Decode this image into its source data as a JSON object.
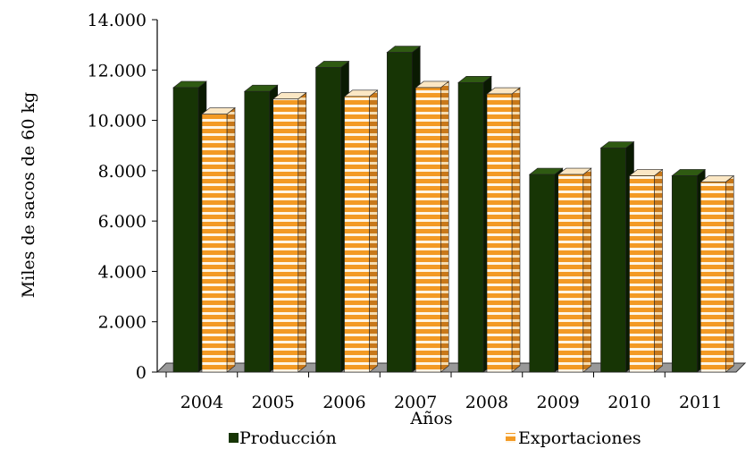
{
  "chart_data": {
    "type": "bar",
    "title": "",
    "xlabel": "Años",
    "ylabel": "Miles de sacos de 60 kg",
    "categories": [
      "2004",
      "2005",
      "2006",
      "2007",
      "2008",
      "2009",
      "2010",
      "2011"
    ],
    "series": [
      {
        "name": "Producción",
        "values": [
          11300,
          11150,
          12100,
          12700,
          11500,
          7850,
          8900,
          7800
        ]
      },
      {
        "name": "Exportaciones",
        "values": [
          10250,
          10850,
          10950,
          11300,
          11050,
          7850,
          7800,
          7550
        ]
      }
    ],
    "ylim": [
      0,
      14000
    ],
    "yticks": [
      "0",
      "2.000",
      "4.000",
      "6.000",
      "8.000",
      "10.000",
      "12.000",
      "14.000"
    ],
    "grid": false,
    "legend_position": "bottom",
    "colors": {
      "produccion_front": "#173505",
      "produccion_side": "#0a1a02",
      "produccion_top": "#2f5a12",
      "exportaciones_front": "#f39a24",
      "exportaciones_stripe": "#fff6e6",
      "exportaciones_side": "#c8781a",
      "floor": "#999999"
    }
  }
}
